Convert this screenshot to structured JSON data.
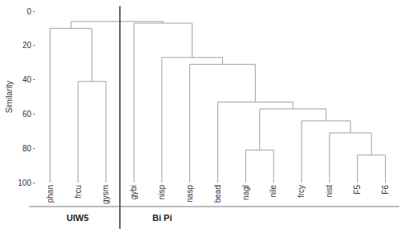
{
  "chart_data": {
    "type": "dendrogram",
    "y_label": "Similarity",
    "ylim": [
      100,
      0
    ],
    "yticks": [
      0,
      20,
      40,
      60,
      80,
      100
    ],
    "color": "#a0a0a0",
    "tree": {
      "similarity": 6,
      "children": [
        {
          "similarity": 10,
          "children": [
            "phan",
            {
              "similarity": 41,
              "children": [
                "frcu",
                "gysm"
              ]
            }
          ]
        },
        {
          "similarity": 7,
          "children": [
            "gybi",
            {
              "similarity": 27,
              "children": [
                "nisp",
                {
                  "similarity": 31,
                  "children": [
                    "nasp",
                    {
                      "similarity": 53,
                      "children": [
                        "bead",
                        {
                          "similarity": 57,
                          "children": [
                            {
                              "similarity": 81,
                              "children": [
                                "nagl",
                                "nile"
                              ]
                            },
                            {
                              "similarity": 64,
                              "children": [
                                "frcy",
                                {
                                  "similarity": 71,
                                  "children": [
                                    "nist",
                                    {
                                      "similarity": 84,
                                      "children": [
                                        "F5",
                                        "F6"
                                      ]
                                    }
                                  ]
                                }
                              ]
                            }
                          ]
                        }
                      ]
                    }
                  ]
                }
              ]
            }
          ]
        }
      ]
    },
    "groups": [
      {
        "label": "UIW5",
        "leaves": [
          "phan",
          "frcu",
          "gysm"
        ]
      },
      {
        "label": "Bi Pi",
        "leaves": [
          "gybi",
          "nisp",
          "nasp",
          "bead",
          "nagl",
          "nile",
          "frcy",
          "nist",
          "F5",
          "F6"
        ]
      }
    ]
  }
}
